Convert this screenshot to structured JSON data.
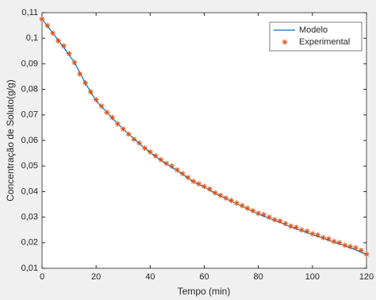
{
  "chart_data": {
    "type": "line",
    "xlabel": "Tempo (min)",
    "ylabel": "Concentração de Soluto(g/g)",
    "xlim": [
      0,
      120
    ],
    "xticks": [
      0,
      20,
      40,
      60,
      80,
      100,
      120
    ],
    "ylim": [
      0.01,
      0.11
    ],
    "yticks": [
      {
        "value": 0.01,
        "label": "0,01"
      },
      {
        "value": 0.02,
        "label": "0,02"
      },
      {
        "value": 0.03,
        "label": "0,03"
      },
      {
        "value": 0.04,
        "label": "0,04"
      },
      {
        "value": 0.05,
        "label": "0,05"
      },
      {
        "value": 0.06,
        "label": "0,06"
      },
      {
        "value": 0.07,
        "label": "0,07"
      },
      {
        "value": 0.08,
        "label": "0,08"
      },
      {
        "value": 0.09,
        "label": "0,09"
      },
      {
        "value": 0.1,
        "label": "0,1"
      },
      {
        "value": 0.11,
        "label": "0,11"
      }
    ],
    "legend": "upper right",
    "series": [
      {
        "name": "Modelo",
        "color": "#0072bd",
        "style": "line",
        "x": [
          0,
          4,
          8,
          12,
          16,
          20,
          24,
          28,
          32,
          36,
          40,
          44,
          48,
          52,
          56,
          60,
          64,
          68,
          72,
          76,
          80,
          84,
          88,
          92,
          96,
          100,
          104,
          108,
          112,
          116,
          120
        ],
        "values": [
          0.1075,
          0.102,
          0.0965,
          0.0905,
          0.0825,
          0.0755,
          0.071,
          0.0665,
          0.0625,
          0.0588,
          0.0553,
          0.0522,
          0.0495,
          0.0468,
          0.0438,
          0.0418,
          0.0393,
          0.0372,
          0.0352,
          0.0332,
          0.0312,
          0.0296,
          0.028,
          0.0262,
          0.0247,
          0.0232,
          0.0217,
          0.0202,
          0.0188,
          0.0172,
          0.0153
        ]
      },
      {
        "name": "Experimental",
        "color": "#d95319",
        "style": "asterisk",
        "x": [
          0,
          2,
          4,
          6,
          8,
          10,
          12,
          14,
          16,
          18,
          20,
          22,
          24,
          26,
          28,
          30,
          32,
          34,
          36,
          38,
          40,
          42,
          44,
          46,
          48,
          50,
          52,
          54,
          56,
          58,
          60,
          62,
          64,
          66,
          68,
          70,
          72,
          74,
          76,
          78,
          80,
          82,
          84,
          86,
          88,
          90,
          92,
          94,
          96,
          98,
          100,
          102,
          104,
          106,
          108,
          110,
          112,
          114,
          116,
          118,
          120
        ],
        "values": [
          0.1075,
          0.105,
          0.102,
          0.099,
          0.097,
          0.094,
          0.0905,
          0.086,
          0.0825,
          0.079,
          0.076,
          0.0735,
          0.071,
          0.069,
          0.0665,
          0.0645,
          0.0625,
          0.0605,
          0.059,
          0.057,
          0.0555,
          0.054,
          0.0525,
          0.051,
          0.05,
          0.0485,
          0.047,
          0.0455,
          0.044,
          0.043,
          0.042,
          0.041,
          0.0395,
          0.0385,
          0.0375,
          0.0365,
          0.0355,
          0.0345,
          0.0335,
          0.0325,
          0.0315,
          0.031,
          0.03,
          0.029,
          0.0285,
          0.0275,
          0.0265,
          0.026,
          0.025,
          0.0245,
          0.0235,
          0.023,
          0.022,
          0.0215,
          0.0205,
          0.02,
          0.019,
          0.0185,
          0.018,
          0.017,
          0.0155
        ]
      }
    ]
  }
}
